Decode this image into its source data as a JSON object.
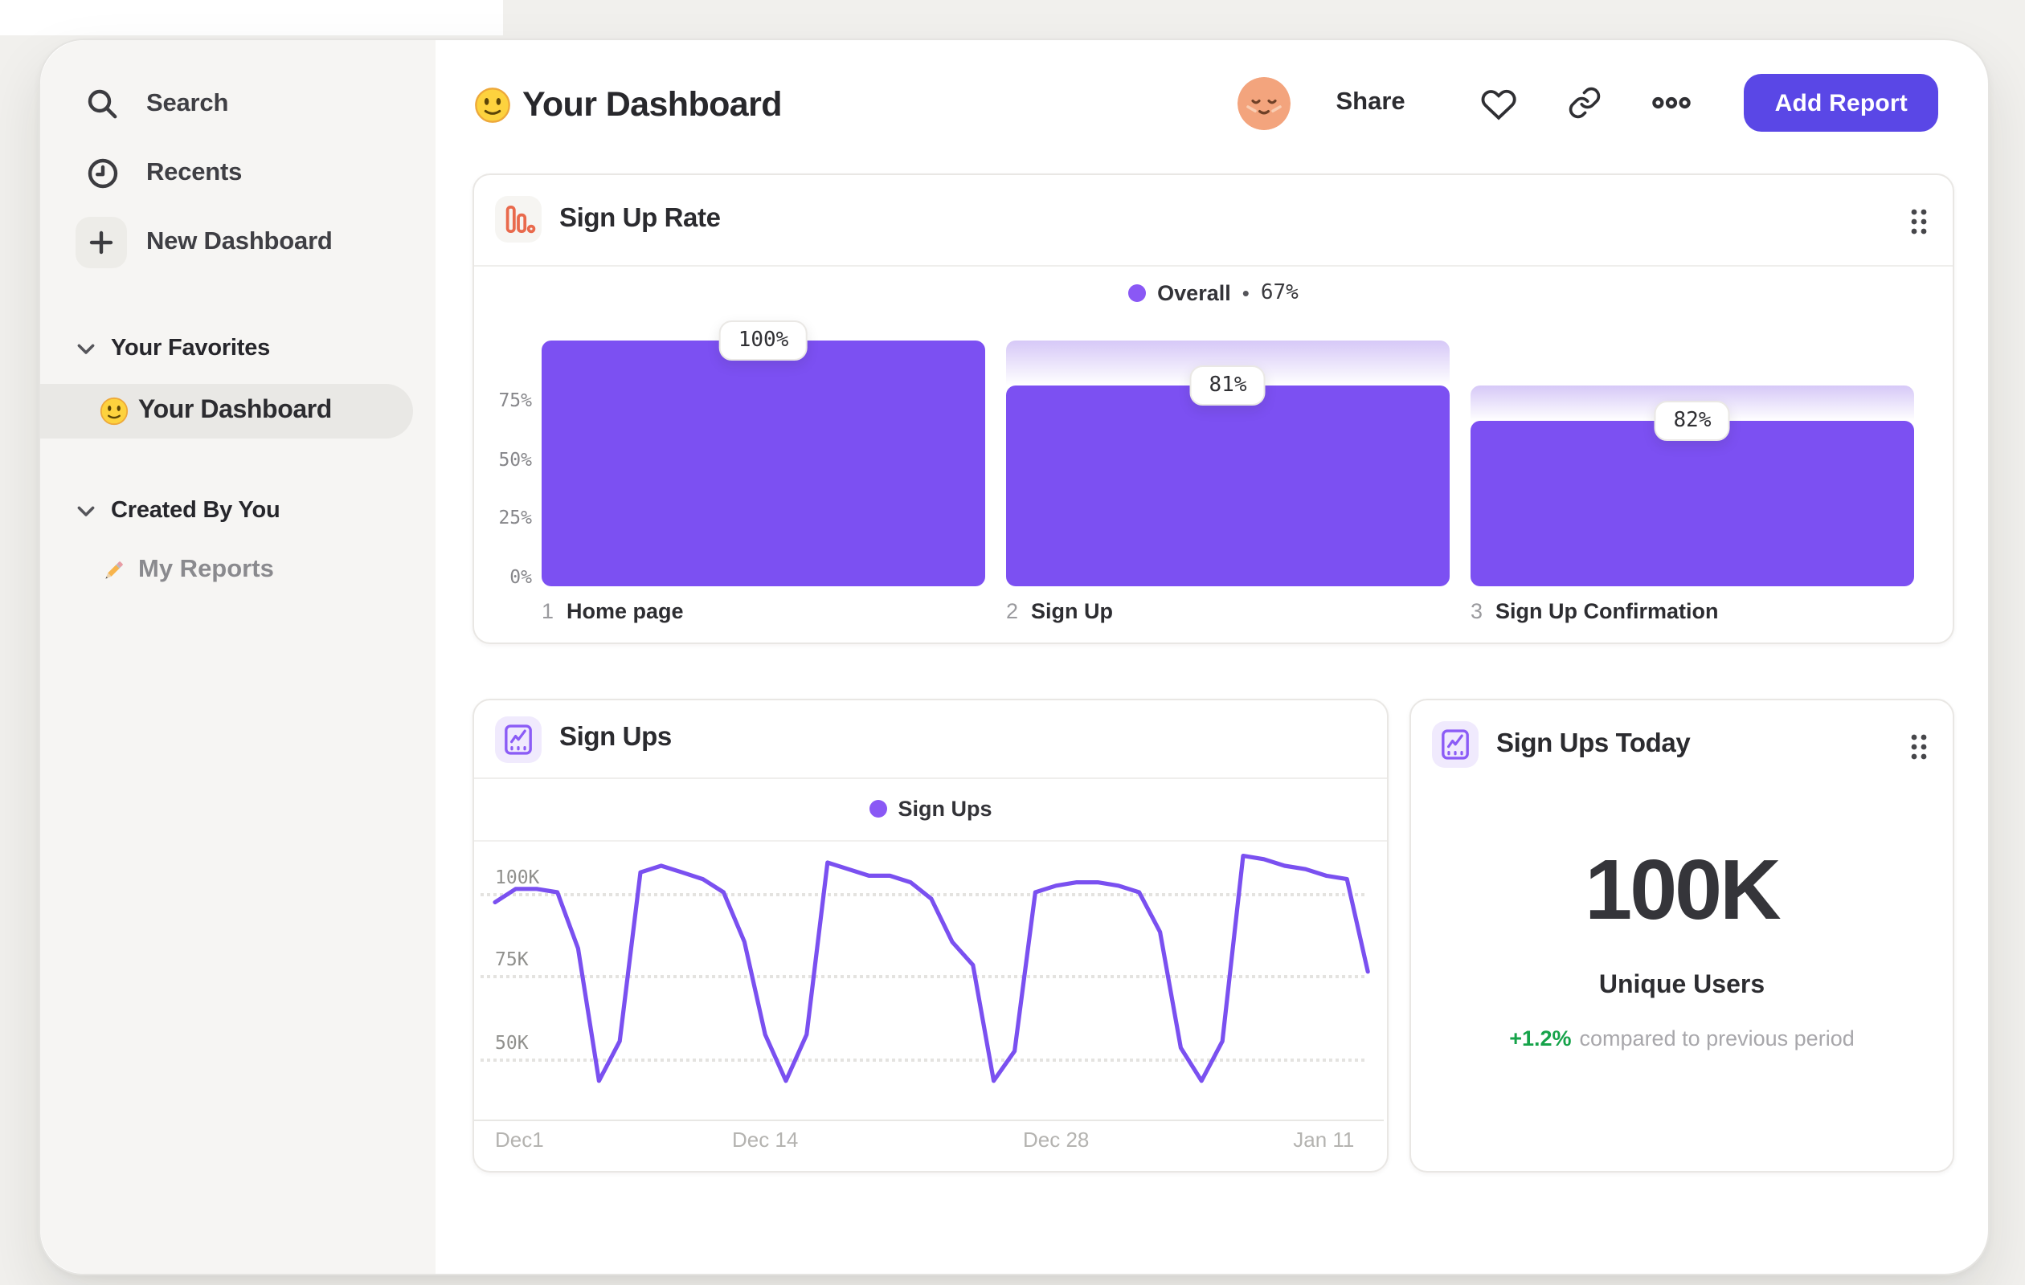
{
  "colors": {
    "page_bg": "#f1f0ed",
    "sidebar_bg": "#f6f5f3",
    "selected_pill": "#e9e8e5",
    "accent_purple": "#7c50f2",
    "line_purple": "#7a50f0",
    "legend_dot": "#8a58f5",
    "cap_gradient_top": "#d6c8f7",
    "button_purple": "#5a47e6",
    "funnel_icon_orange": "#e96a4d",
    "line_icon_purple": "#8b5cf6",
    "delta_green": "#16a34a"
  },
  "sidebar": {
    "items": [
      {
        "icon": "search-icon",
        "label": "Search"
      },
      {
        "icon": "clock-icon",
        "label": "Recents"
      },
      {
        "icon": "plus-icon",
        "label": "New Dashboard"
      }
    ],
    "sections": [
      {
        "label": "Your Favorites",
        "items": [
          {
            "icon": "smiley-icon",
            "label": "Your Dashboard",
            "selected": true
          }
        ]
      },
      {
        "label": "Created By You",
        "items": [
          {
            "icon": "pencil-icon",
            "label": "My Reports",
            "selected": false
          }
        ]
      }
    ]
  },
  "header": {
    "title_icon": "smiley-icon",
    "title": "Your Dashboard",
    "share_label": "Share",
    "action_icons": [
      "avatar",
      "heart-icon",
      "link-icon",
      "ellipsis-icon"
    ],
    "add_report_label": "Add Report"
  },
  "cards": {
    "funnel": {
      "icon": "bar-chart-icon",
      "title": "Sign Up Rate",
      "legend": {
        "series": "Overall",
        "separator": "•",
        "value": "67%"
      }
    },
    "line": {
      "icon": "line-chart-icon",
      "title": "Sign Ups",
      "legend": {
        "series": "Sign Ups"
      }
    },
    "today": {
      "icon": "line-chart-icon",
      "title": "Sign Ups Today",
      "value": "100K",
      "metric": "Unique Users",
      "delta": "+1.2%",
      "delta_note": "compared to previous period"
    }
  },
  "chart_data": [
    {
      "id": "sign-up-rate-funnel",
      "type": "bar",
      "title": "Sign Up Rate",
      "legend_position": "top-center",
      "legend": "Overall • 67%",
      "overall_conversion_pct": 67,
      "categories": [
        "Home page",
        "Sign Up",
        "Sign Up Confirmation"
      ],
      "step_numbers": [
        "1",
        "2",
        "3"
      ],
      "step_conversion_pct": [
        100,
        81,
        82
      ],
      "bar_labels": [
        "100%",
        "81%",
        "82%"
      ],
      "overall_pct_rendered": [
        100,
        81,
        66
      ],
      "y_ticks": [
        {
          "label": "75%",
          "value": 75
        },
        {
          "label": "50%",
          "value": 50
        },
        {
          "label": "25%",
          "value": 25
        },
        {
          "label": "0%",
          "value": 0
        }
      ],
      "ylim": [
        0,
        100
      ],
      "grid": false,
      "bar_color": "#7c50f2",
      "cap_gradient": [
        "#d6c8f7",
        "#ffffff"
      ]
    },
    {
      "id": "sign-ups-line",
      "type": "line",
      "title": "Sign Ups",
      "legend_position": "top-center",
      "series": [
        {
          "name": "Sign Ups",
          "color": "#7a50f0",
          "unit": "K",
          "values": [
            97,
            101,
            101,
            100,
            83,
            43,
            55,
            106,
            108,
            106,
            104,
            100,
            85,
            57,
            43,
            57,
            109,
            107,
            105,
            105,
            103,
            98,
            85,
            78,
            43,
            52,
            100,
            102,
            103,
            103,
            102,
            100,
            88,
            53,
            43,
            55,
            111,
            110,
            108,
            107,
            105,
            104,
            76
          ]
        }
      ],
      "x_range": "Dec 1 - Jan 12 (daily)",
      "x_ticks": [
        {
          "label": "Dec1",
          "day": 0,
          "align": "left"
        },
        {
          "label": "Dec 14",
          "day": 13,
          "align": "center"
        },
        {
          "label": "Dec 28",
          "day": 27,
          "align": "center"
        },
        {
          "label": "Jan 11",
          "day": 41,
          "align": "right"
        }
      ],
      "y_ticks": [
        {
          "label": "100K",
          "value": 100
        },
        {
          "label": "75K",
          "value": 75
        },
        {
          "label": "50K",
          "value": 50
        }
      ],
      "grid": "dotted-horizontal",
      "ylim_visible": [
        30,
        115
      ]
    }
  ]
}
